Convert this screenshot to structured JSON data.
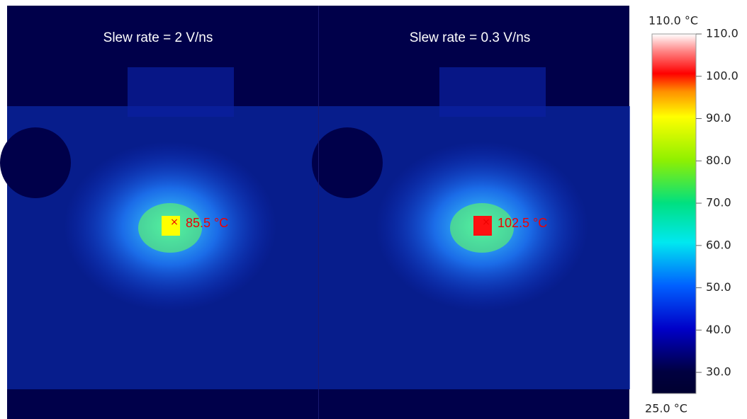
{
  "panels": [
    {
      "title": "Slew rate = 2 V/ns",
      "hotspot": {
        "label": "85.5 °C",
        "value": 85.5
      }
    },
    {
      "title": "Slew rate = 0.3 V/ns",
      "hotspot": {
        "label": "102.5 °C",
        "value": 102.5
      }
    }
  ],
  "colorbar": {
    "max_label": "110.0 °C",
    "min_label": "25.0 °C",
    "range": [
      25,
      110
    ],
    "ticks": [
      {
        "value": 30,
        "label": "30.0"
      },
      {
        "value": 40,
        "label": "40.0"
      },
      {
        "value": 50,
        "label": "50.0"
      },
      {
        "value": 60,
        "label": "60.0"
      },
      {
        "value": 70,
        "label": "70.0"
      },
      {
        "value": 80,
        "label": "80.0"
      },
      {
        "value": 90,
        "label": "90.0"
      },
      {
        "value": 100,
        "label": "100.0"
      },
      {
        "value": 110,
        "label": "110.0"
      }
    ]
  }
}
